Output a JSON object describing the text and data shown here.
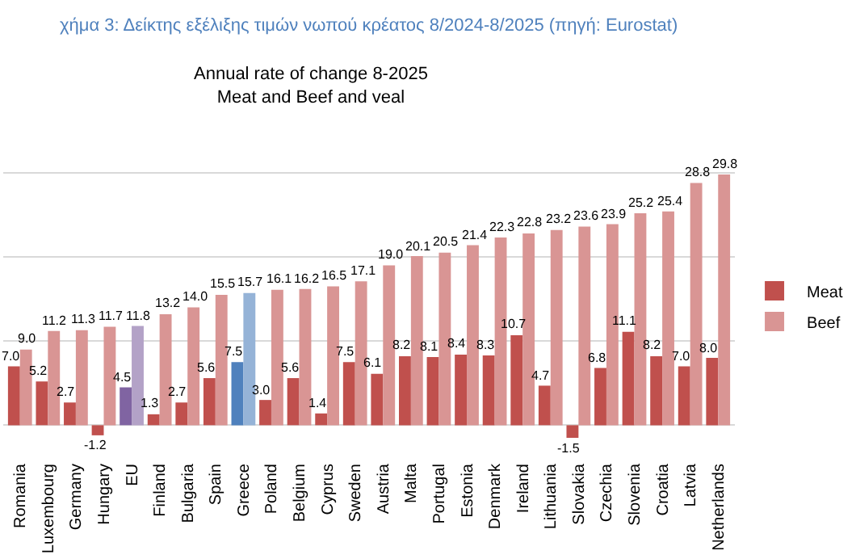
{
  "chart_data": {
    "type": "bar",
    "title": "χήμα 3: Δείκτης εξέλιξης τιμών νωπού κρέατος 8/2024-8/2025 (πηγή: Eurostat)",
    "subtitle": "Annual rate of change 8-2025\nMeat and Beef and veal",
    "categories": [
      "Romania",
      "Luxembourg",
      "Germany",
      "Hungary",
      "EU",
      "Finland",
      "Bulgaria",
      "Spain",
      "Greece",
      "Poland",
      "Belgium",
      "Cyprus",
      "Sweden",
      "Austria",
      "Malta",
      "Portugal",
      "Estonia",
      "Denmark",
      "Ireland",
      "Lithuania",
      "Slovakia",
      "Czechia",
      "Slovenia",
      "Croatia",
      "Latvia",
      "Netherlands"
    ],
    "series": [
      {
        "name": "Meat",
        "colors": [
          "#c0504d",
          "#c0504d",
          "#c0504d",
          "#c0504d",
          "#8064a2",
          "#c0504d",
          "#c0504d",
          "#c0504d",
          "#4f81bd",
          "#c0504d",
          "#c0504d",
          "#c0504d",
          "#c0504d",
          "#c0504d",
          "#c0504d",
          "#c0504d",
          "#c0504d",
          "#c0504d",
          "#c0504d",
          "#c0504d",
          "#c0504d",
          "#c0504d",
          "#c0504d",
          "#c0504d",
          "#c0504d",
          "#c0504d"
        ],
        "values": [
          7.0,
          5.2,
          2.7,
          -1.2,
          4.5,
          1.3,
          2.7,
          5.6,
          7.5,
          3.0,
          5.6,
          1.4,
          7.5,
          6.1,
          8.2,
          8.1,
          8.4,
          8.3,
          10.7,
          4.7,
          -1.5,
          6.8,
          11.1,
          8.2,
          7.0,
          8.0
        ],
        "value_labels": [
          "7.0",
          "5.2",
          "2.7",
          "-1.2",
          "4.5",
          "1.3",
          "2.7",
          "5.6",
          "7.5",
          "3.0",
          "5.6",
          "1.4",
          "7.5",
          "6.1",
          "8.2",
          "8.1",
          "8.4",
          "8.3",
          "10.7",
          "4.7",
          "-1.5",
          "6.8",
          "11.1",
          "8.2",
          "7.0",
          "8.0"
        ]
      },
      {
        "name": "Beef",
        "colors": [
          "#d99594",
          "#d99594",
          "#d99594",
          "#d99594",
          "#b3a2c7",
          "#d99594",
          "#d99594",
          "#d99594",
          "#95b3d7",
          "#d99594",
          "#d99594",
          "#d99594",
          "#d99594",
          "#d99594",
          "#d99594",
          "#d99594",
          "#d99594",
          "#d99594",
          "#d99594",
          "#d99594",
          "#d99594",
          "#d99594",
          "#d99594",
          "#d99594",
          "#d99594",
          "#d99594"
        ],
        "values": [
          9.0,
          11.2,
          11.3,
          11.7,
          11.8,
          13.2,
          14.0,
          15.5,
          15.7,
          16.1,
          16.2,
          16.5,
          17.1,
          19.0,
          20.1,
          20.5,
          21.4,
          22.3,
          22.8,
          23.2,
          23.6,
          23.9,
          25.2,
          25.4,
          28.8,
          29.8
        ],
        "value_labels": [
          "9.0",
          "11.2",
          "11.3",
          "11.7",
          "11.8",
          "13.2",
          "14.0",
          "15.5",
          "15.7",
          "16.1",
          "16.2",
          "16.5",
          "17.1",
          "19.0",
          "20.1",
          "20.5",
          "21.4",
          "22.3",
          "22.8",
          "23.2",
          "23.6",
          "23.9",
          "25.2",
          "25.4",
          "28.8",
          "29.8"
        ]
      }
    ],
    "grid": "y",
    "legend": "right"
  }
}
